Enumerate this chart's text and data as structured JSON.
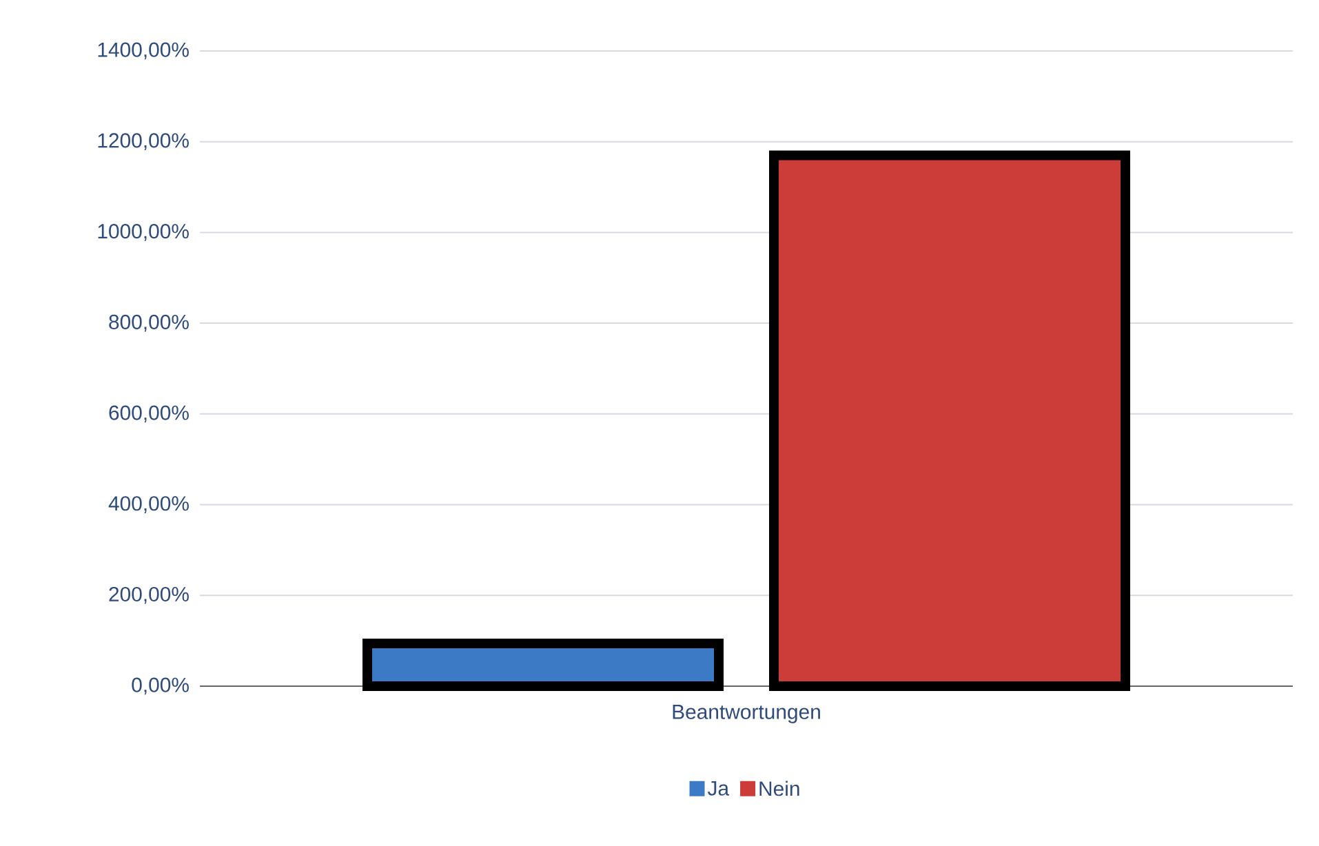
{
  "chart_data": {
    "type": "bar",
    "categories": [
      "Beantwortungen"
    ],
    "series": [
      {
        "name": "Ja",
        "color": "#3c7ac6",
        "values": [
          94
        ]
      },
      {
        "name": "Nein",
        "color": "#cc3d3a",
        "values": [
          1170
        ]
      }
    ],
    "ylim": [
      0,
      1400
    ],
    "yticks": [
      {
        "value": 0,
        "label": "0,00%"
      },
      {
        "value": 200,
        "label": "200,00%"
      },
      {
        "value": 400,
        "label": "400,00%"
      },
      {
        "value": 600,
        "label": "600,00%"
      },
      {
        "value": 800,
        "label": "800,00%"
      },
      {
        "value": 1000,
        "label": "1000,00%"
      },
      {
        "value": 1200,
        "label": "1200,00%"
      },
      {
        "value": 1400,
        "label": "1400,00%"
      }
    ],
    "grid": "y",
    "legend": "bottom"
  }
}
